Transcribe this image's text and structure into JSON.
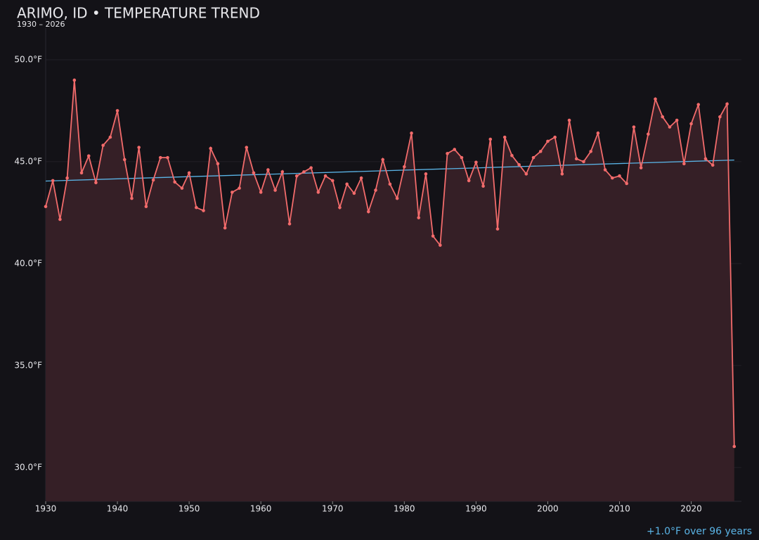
{
  "chart_data": {
    "type": "line",
    "title": "ARIMO, ID • TEMPERATURE TREND",
    "subtitle": "1930 – 2026",
    "annotation": "+1.0°F over 96 years",
    "x": [
      1930,
      1931,
      1932,
      1933,
      1934,
      1935,
      1936,
      1937,
      1938,
      1939,
      1940,
      1941,
      1942,
      1943,
      1944,
      1945,
      1946,
      1947,
      1948,
      1949,
      1950,
      1951,
      1952,
      1953,
      1954,
      1955,
      1956,
      1957,
      1958,
      1959,
      1960,
      1961,
      1962,
      1963,
      1964,
      1965,
      1966,
      1967,
      1968,
      1969,
      1970,
      1971,
      1972,
      1973,
      1974,
      1975,
      1976,
      1977,
      1978,
      1979,
      1980,
      1981,
      1982,
      1983,
      1984,
      1985,
      1986,
      1987,
      1988,
      1989,
      1990,
      1991,
      1992,
      1993,
      1994,
      1995,
      1996,
      1997,
      1998,
      1999,
      2000,
      2001,
      2002,
      2003,
      2004,
      2005,
      2006,
      2007,
      2008,
      2009,
      2010,
      2011,
      2012,
      2013,
      2014,
      2015,
      2016,
      2017,
      2018,
      2019,
      2020,
      2021,
      2022,
      2023,
      2024,
      2025,
      2026
    ],
    "values": [
      42.8,
      44.07,
      42.17,
      44.2,
      49.0,
      44.45,
      45.28,
      43.97,
      45.8,
      46.2,
      47.5,
      45.1,
      43.2,
      45.7,
      42.8,
      44.1,
      45.2,
      45.2,
      44.0,
      43.7,
      44.45,
      42.75,
      42.6,
      45.65,
      44.9,
      41.75,
      43.5,
      43.7,
      45.7,
      44.45,
      43.5,
      44.6,
      43.6,
      44.5,
      41.95,
      44.3,
      44.5,
      44.7,
      43.5,
      44.3,
      44.07,
      42.75,
      43.9,
      43.45,
      44.2,
      42.55,
      43.6,
      45.1,
      43.9,
      43.2,
      44.75,
      46.4,
      42.25,
      44.4,
      41.35,
      40.9,
      45.4,
      45.6,
      45.2,
      44.07,
      44.97,
      43.8,
      46.1,
      41.7,
      46.2,
      45.3,
      44.85,
      44.4,
      45.2,
      45.5,
      46.0,
      46.2,
      44.4,
      47.03,
      45.14,
      45.0,
      45.5,
      46.4,
      44.6,
      44.2,
      44.3,
      43.93,
      46.7,
      44.7,
      46.35,
      48.07,
      47.2,
      46.7,
      47.03,
      44.9,
      46.86,
      47.8,
      45.14,
      44.83,
      47.2,
      47.83,
      31.03
    ],
    "color": "#f26b6b",
    "area_color": "#351f26",
    "trend": {
      "x": [
        1930,
        2026
      ],
      "values": [
        44.05,
        45.08
      ],
      "color": "#5ab4e6"
    },
    "xlim": [
      1930,
      2027
    ],
    "ylim": [
      28.34,
      51.55
    ],
    "xticks": [
      1930,
      1940,
      1950,
      1960,
      1970,
      1980,
      1990,
      2000,
      2010,
      2020
    ],
    "yticks": [
      {
        "value": 30,
        "label": "30.0°F"
      },
      {
        "value": 35,
        "label": "35.0°F"
      },
      {
        "value": 40,
        "label": "40.0°F"
      },
      {
        "value": 45,
        "label": "45.0°F"
      },
      {
        "value": 50,
        "label": "50.0°F"
      }
    ],
    "grid": true
  }
}
